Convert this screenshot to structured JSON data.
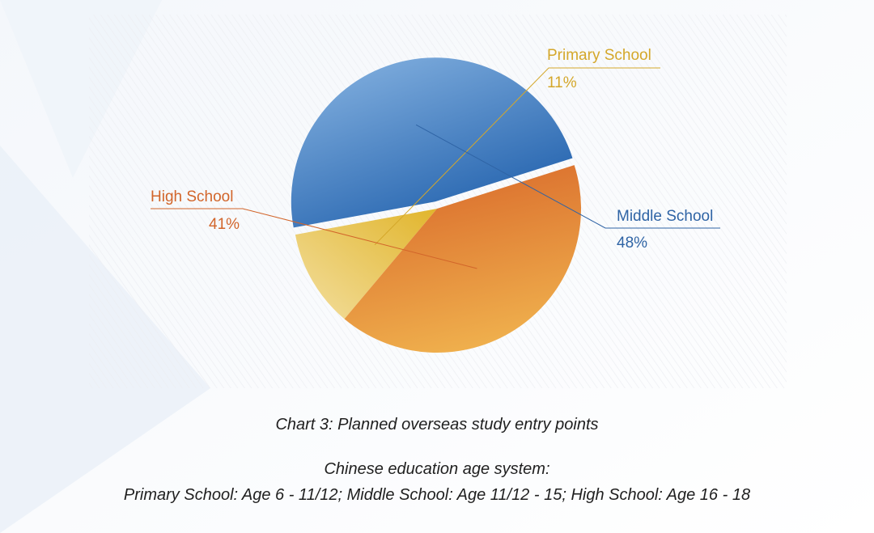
{
  "chart_data": {
    "type": "pie",
    "title": "",
    "slices": [
      {
        "label": "Primary School",
        "value": 11,
        "display": "11%",
        "color": "#E3BD3A"
      },
      {
        "label": "Middle School",
        "value": 48,
        "display": "48%",
        "color": "#3F7FC7"
      },
      {
        "label": "High School",
        "value": 41,
        "display": "41%",
        "color": "#E07B2C"
      }
    ],
    "legend": "callout-labels"
  },
  "caption": {
    "title": "Chart 3: Planned overseas study entry points",
    "subtitle": "Chinese education age system:",
    "ages": "Primary School: Age 6 - 11/12;  Middle School: Age 11/12 - 15;   High School: Age 16 - 18"
  }
}
